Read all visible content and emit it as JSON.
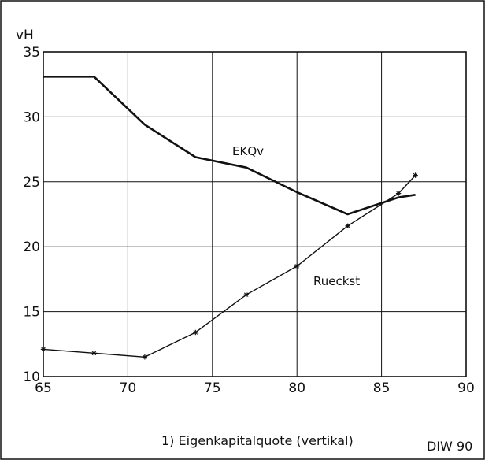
{
  "chart_data": {
    "type": "line",
    "ylabel": "vH",
    "xlim": [
      65,
      90
    ],
    "ylim": [
      10,
      35
    ],
    "x_ticks": [
      "65",
      "70",
      "75",
      "80",
      "85",
      "90"
    ],
    "y_ticks": [
      "10",
      "15",
      "20",
      "25",
      "30",
      "35"
    ],
    "grid": true,
    "series": [
      {
        "name": "EKQv",
        "color": "#111111",
        "marker": "none",
        "points": [
          [
            65,
            33.1
          ],
          [
            68,
            33.1
          ],
          [
            71,
            29.4
          ],
          [
            74,
            26.9
          ],
          [
            77,
            26.1
          ],
          [
            80,
            24.2
          ],
          [
            83,
            22.5
          ],
          [
            86,
            23.8
          ],
          [
            87,
            24.0
          ]
        ]
      },
      {
        "name": "Rueckst",
        "color": "#111111",
        "marker": "star",
        "points": [
          [
            65,
            12.1
          ],
          [
            68,
            11.8
          ],
          [
            71,
            11.5
          ],
          [
            74,
            13.4
          ],
          [
            77,
            16.3
          ],
          [
            80,
            18.5
          ],
          [
            83,
            21.6
          ],
          [
            86,
            24.1
          ],
          [
            87,
            25.5
          ]
        ]
      }
    ],
    "footnote": "1) Eigenkapitalquote (vertikal)",
    "source": "DIW 90"
  }
}
